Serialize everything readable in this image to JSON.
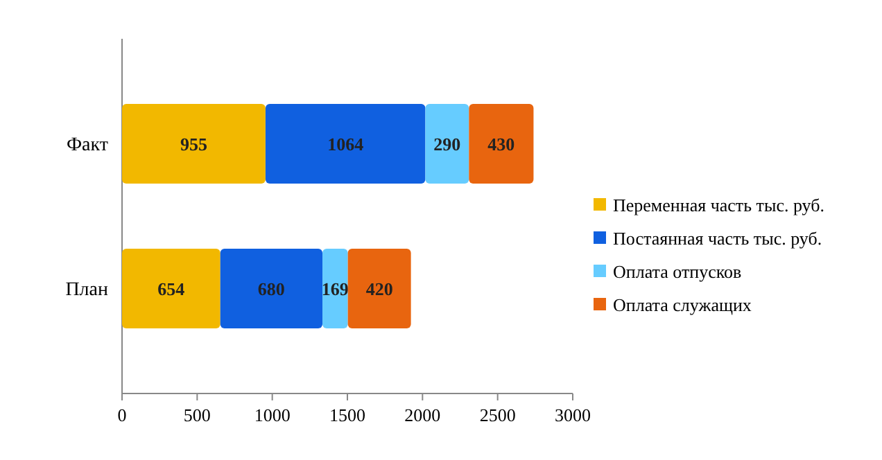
{
  "chart_data": {
    "type": "bar",
    "orientation": "horizontal",
    "stacked": true,
    "categories": [
      "Факт",
      "План"
    ],
    "series": [
      {
        "name": "Переменная часть тыс. руб.",
        "color": "#f2b800",
        "values": [
          955,
          654
        ]
      },
      {
        "name": "Постаянная часть тыс. руб.",
        "color": "#1060e0",
        "values": [
          1064,
          680
        ]
      },
      {
        "name": "Оплата отпусков",
        "color": "#66ccff",
        "values": [
          290,
          169
        ]
      },
      {
        "name": "Оплата служащих",
        "color": "#e8650f",
        "values": [
          430,
          420
        ]
      }
    ],
    "xlim": [
      0,
      3000
    ],
    "xticks": [
      0,
      500,
      1000,
      1500,
      2000,
      2500,
      3000
    ],
    "data_labels": true,
    "legend": "right",
    "grid": false
  }
}
